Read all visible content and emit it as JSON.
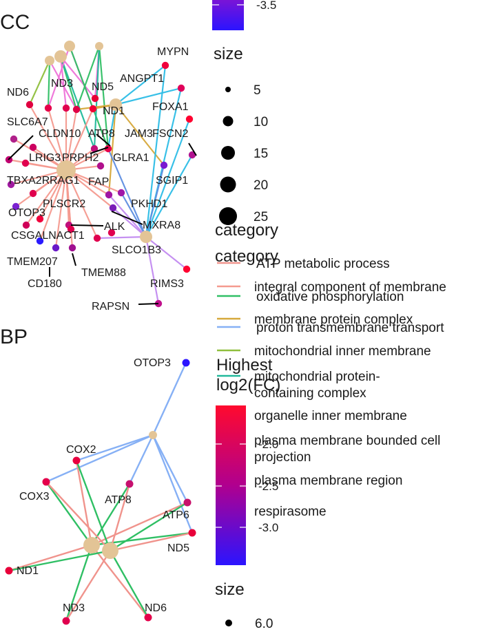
{
  "panels": [
    {
      "title": "CC"
    },
    {
      "title": "BP"
    }
  ],
  "colors": {
    "cat_atp": "#f0938c",
    "cat_integral": "#f49a8f",
    "cat_oxphos": "#2fbf64",
    "cat_membrane_complex": "#d6a83a",
    "cat_proton": "#86b0f5",
    "cat_mito_inner": "#8fbf3c",
    "cat_mito_protein": "#21b99b",
    "cat_organelle": "#2dbde6",
    "cat_plasma_proj": "#5f8ee0",
    "cat_plasma_region": "#c28af0",
    "cat_respirasome": "#ee72d8",
    "hub": "#e3c496",
    "fc_high": "#ff0a2e",
    "fc_mid": "#b0008f",
    "fc_low": "#2b14ff"
  },
  "cc_nodes": [
    {
      "label": "MYPN"
    },
    {
      "label": "ANGPT1"
    },
    {
      "label": "ND6"
    },
    {
      "label": "ND3"
    },
    {
      "label": "ND5"
    },
    {
      "label": "FOXA1"
    },
    {
      "label": "ND1"
    },
    {
      "label": "SLC6A7"
    },
    {
      "label": "CLDN10"
    },
    {
      "label": "ATP8"
    },
    {
      "label": "JAM3"
    },
    {
      "label": "FSCN2"
    },
    {
      "label": "LRIG3"
    },
    {
      "label": "PRPH2"
    },
    {
      "label": "GLRA1"
    },
    {
      "label": "TBXA2R"
    },
    {
      "label": "RAG1"
    },
    {
      "label": "FAP"
    },
    {
      "label": "SGIP1"
    },
    {
      "label": "OTOP3"
    },
    {
      "label": "PLSCR2"
    },
    {
      "label": "PKHD1"
    },
    {
      "label": "ALK"
    },
    {
      "label": "MXRA8"
    },
    {
      "label": "CSGALNACT1"
    },
    {
      "label": "SLCO1B3"
    },
    {
      "label": "TMEM207"
    },
    {
      "label": "TMEM88"
    },
    {
      "label": "CD180"
    },
    {
      "label": "RIMS3"
    },
    {
      "label": "RAPSN"
    }
  ],
  "bp_nodes": [
    {
      "label": "OTOP3"
    },
    {
      "label": "COX2"
    },
    {
      "label": "COX3"
    },
    {
      "label": "ATP8"
    },
    {
      "label": "ATP6"
    },
    {
      "label": "ND5"
    },
    {
      "label": "ND1"
    },
    {
      "label": "ND3"
    },
    {
      "label": "ND6"
    }
  ],
  "legend_cc": {
    "size_title": "size",
    "size_items": [
      "5",
      "10",
      "15",
      "20",
      "25"
    ],
    "category_title": "category",
    "categories": [
      "integral component of membrane",
      "membrane protein complex",
      "mitochondrial inner membrane",
      "mitochondrial protein-\ncontaining complex",
      "organelle inner membrane",
      "plasma membrane bounded cell\nprojection",
      "plasma membrane region",
      "respirasome"
    ],
    "colorbar_top_label": "-3.5"
  },
  "legend_bp": {
    "category_title": "category",
    "categories": [
      "ATP metabolic process",
      "oxidative phosphorylation",
      "proton transmembrane transport"
    ],
    "fc_title": "Highest\nlog2(FC)",
    "fc_ticks": [
      "-2.0",
      "-2.5",
      "-3.0"
    ],
    "size_title": "size",
    "size_items": [
      "6.0"
    ]
  }
}
